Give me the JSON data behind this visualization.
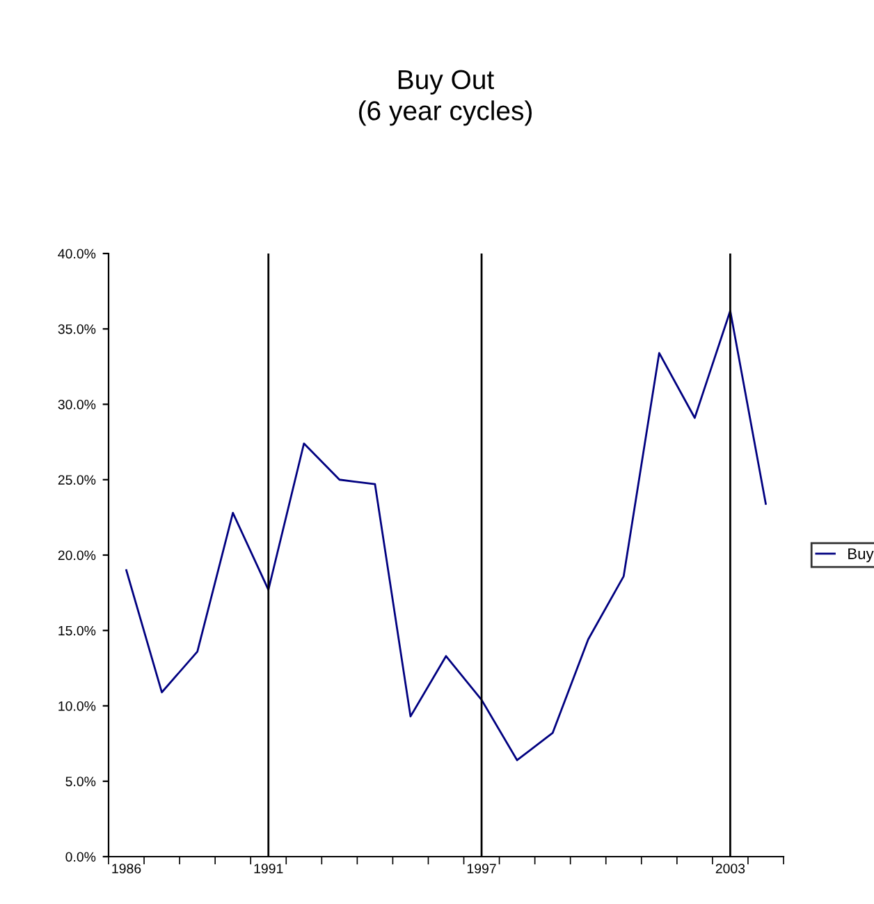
{
  "chart_data": {
    "type": "line",
    "title": "Buy Out\n(6 year cycles)",
    "categories": [
      "1986",
      null,
      null,
      null,
      "1991",
      null,
      null,
      null,
      null,
      null,
      "1997",
      null,
      null,
      null,
      null,
      null,
      null,
      "2003",
      null
    ],
    "series": [
      {
        "name": "Buy",
        "color": "#000080",
        "values": [
          19.0,
          10.9,
          13.6,
          22.8,
          17.7,
          27.4,
          25.0,
          24.7,
          9.3,
          13.3,
          10.4,
          6.4,
          8.2,
          14.4,
          18.6,
          33.4,
          29.1,
          36.2,
          23.4
        ]
      }
    ],
    "ylim": [
      0,
      40
    ],
    "yticks": [
      {
        "value": 0,
        "label": "0.0%"
      },
      {
        "value": 5,
        "label": "5.0%"
      },
      {
        "value": 10,
        "label": "10.0%"
      },
      {
        "value": 15,
        "label": "15.0%"
      },
      {
        "value": 20,
        "label": "20.0%"
      },
      {
        "value": 25,
        "label": "25.0%"
      },
      {
        "value": 30,
        "label": "30.0%"
      },
      {
        "value": 35,
        "label": "35.0%"
      },
      {
        "value": 40,
        "label": "40.0%"
      }
    ],
    "ref_lines": [
      {
        "axis": "x",
        "value": "1991",
        "color": "#000000"
      },
      {
        "axis": "x",
        "value": "1997",
        "color": "#000000"
      },
      {
        "axis": "x",
        "value": "2003",
        "color": "#000000"
      }
    ],
    "grid": false,
    "legend": "right",
    "marker": "none",
    "line_style": "solid"
  }
}
